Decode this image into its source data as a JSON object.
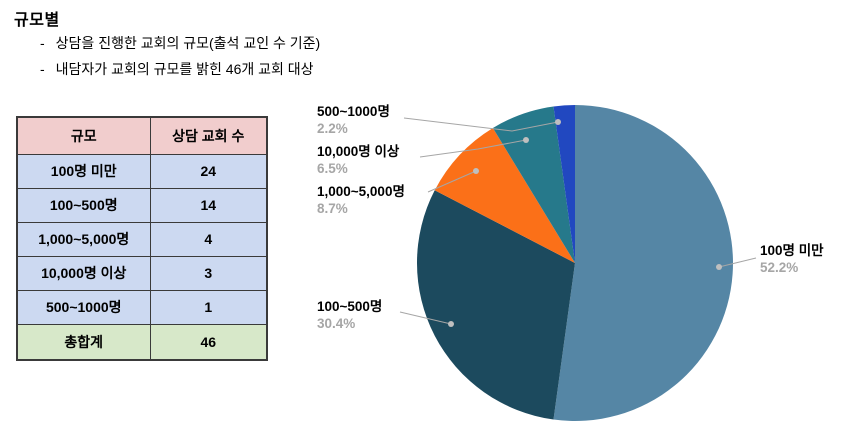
{
  "page": {
    "title": "규모별",
    "bullet_marker": "-",
    "bullets": [
      "상담을 진행한 교회의 규모(출석 교인 수 기준)",
      "내담자가 교회의 규모를 밝힌 46개 교회 대상"
    ]
  },
  "table": {
    "headers": [
      "규모",
      "상담 교회 수"
    ],
    "rows": [
      [
        "100명 미만",
        "24"
      ],
      [
        "100~500명",
        "14"
      ],
      [
        "1,000~5,000명",
        "4"
      ],
      [
        "10,000명 이상",
        "3"
      ],
      [
        "500~1000명",
        "1"
      ]
    ],
    "total": [
      "총합계",
      "46"
    ]
  },
  "chart_data": {
    "type": "pie",
    "title": "",
    "categories": [
      "100명 미만",
      "100~500명",
      "1,000~5,000명",
      "10,000명 이상",
      "500~1000명"
    ],
    "values": [
      24,
      14,
      4,
      3,
      1
    ],
    "percents": [
      "52.2%",
      "30.4%",
      "8.7%",
      "6.5%",
      "2.2%"
    ],
    "colors": [
      "#5586A5",
      "#1C4A5E",
      "#FB7018",
      "#26798B",
      "#2148C0"
    ],
    "total": 46,
    "start_angle_deg": 0,
    "direction": "clockwise",
    "legend": "none"
  },
  "theme": {
    "header_bg": "#F1CDCD",
    "row_bg": "#CCD9F1",
    "total_bg": "#D7E8C9",
    "table_border": "#3A3A3A",
    "callout_pct_color": "#A6A6A6",
    "leader_line_color": "#A6A6A6",
    "leader_dot_color": "#BFBFBF"
  }
}
